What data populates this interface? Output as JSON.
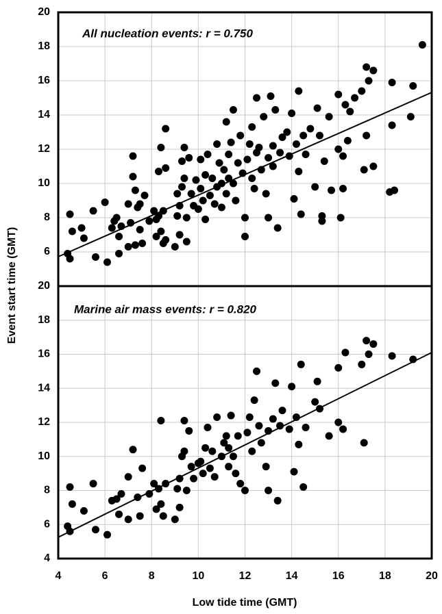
{
  "chart_data": [
    {
      "type": "scatter",
      "annotation": "All nucleation events: r = 0.750",
      "ylabel": "Event start time (GMT)",
      "color": "#000000",
      "grid": true,
      "xlim": [
        4,
        20
      ],
      "xticks": [
        4,
        6,
        8,
        10,
        12,
        14,
        16,
        18,
        20
      ],
      "ylim": [
        4,
        20
      ],
      "yticks": [
        6,
        8,
        10,
        12,
        14,
        16,
        18,
        20
      ],
      "x": [
        4.4,
        4.5,
        4.5,
        4.6,
        5.0,
        5.1,
        5.5,
        5.6,
        6.0,
        6.1,
        6.3,
        6.4,
        6.5,
        6.6,
        6.6,
        6.7,
        7.0,
        7.0,
        7.1,
        7.2,
        7.2,
        7.3,
        7.3,
        7.4,
        7.5,
        7.5,
        7.6,
        7.7,
        7.9,
        8.1,
        8.2,
        8.2,
        8.3,
        8.3,
        8.4,
        8.4,
        8.5,
        8.5,
        8.6,
        8.6,
        8.6,
        9.0,
        9.1,
        9.1,
        9.2,
        9.2,
        9.3,
        9.3,
        9.4,
        9.4,
        9.5,
        9.5,
        9.6,
        9.7,
        9.8,
        9.9,
        10.0,
        10.1,
        10.1,
        10.2,
        10.3,
        10.3,
        10.4,
        10.5,
        10.6,
        10.7,
        10.8,
        10.8,
        10.9,
        11.0,
        11.0,
        11.1,
        11.2,
        11.2,
        11.3,
        11.3,
        11.4,
        11.5,
        11.5,
        11.6,
        11.7,
        11.8,
        11.9,
        12.0,
        12.0,
        12.1,
        12.2,
        12.3,
        12.3,
        12.4,
        12.5,
        12.5,
        12.6,
        12.7,
        12.8,
        12.9,
        13.0,
        13.0,
        13.1,
        13.2,
        13.2,
        13.3,
        13.4,
        13.5,
        13.6,
        13.8,
        13.9,
        14.0,
        14.1,
        14.2,
        14.3,
        14.3,
        14.4,
        14.5,
        14.6,
        14.8,
        15.0,
        15.1,
        15.2,
        15.3,
        15.3,
        15.4,
        15.6,
        15.7,
        16.0,
        16.0,
        16.1,
        16.2,
        16.2,
        16.3,
        16.4,
        16.5,
        16.7,
        17.0,
        17.1,
        17.2,
        17.2,
        17.3,
        17.5,
        17.5,
        18.2,
        18.3,
        18.3,
        18.4,
        19.1,
        19.2,
        19.6
      ],
      "values": [
        5.9,
        5.6,
        8.2,
        7.2,
        7.4,
        6.8,
        8.4,
        5.7,
        8.9,
        5.4,
        7.4,
        7.8,
        8.0,
        5.9,
        6.9,
        7.5,
        8.8,
        6.3,
        7.7,
        11.6,
        10.4,
        9.6,
        6.4,
        8.6,
        7.3,
        8.8,
        6.5,
        9.3,
        7.8,
        8.4,
        7.9,
        6.9,
        8.1,
        10.7,
        12.1,
        7.2,
        6.5,
        8.4,
        13.2,
        10.9,
        6.7,
        6.3,
        8.1,
        9.4,
        8.7,
        7.0,
        11.3,
        9.8,
        12.1,
        10.3,
        8.0,
        6.6,
        11.5,
        9.4,
        8.7,
        10.2,
        8.5,
        9.7,
        11.4,
        9.0,
        10.5,
        7.9,
        11.7,
        9.3,
        10.3,
        8.8,
        12.3,
        9.8,
        11.2,
        10.0,
        8.6,
        10.8,
        13.6,
        9.4,
        11.7,
        10.3,
        12.4,
        14.3,
        10.0,
        9.0,
        11.2,
        12.8,
        10.6,
        8.0,
        6.9,
        11.4,
        12.3,
        10.3,
        13.3,
        9.7,
        15.0,
        11.8,
        12.1,
        10.8,
        13.9,
        9.4,
        11.5,
        8.0,
        15.1,
        12.2,
        11.0,
        14.3,
        7.4,
        11.8,
        12.7,
        13.0,
        11.6,
        14.1,
        9.1,
        12.3,
        10.7,
        15.4,
        8.2,
        12.8,
        11.7,
        13.2,
        9.8,
        14.4,
        12.8,
        8.1,
        7.8,
        11.3,
        13.9,
        9.6,
        15.2,
        12.0,
        8.0,
        9.7,
        11.6,
        14.6,
        12.5,
        14.2,
        15.0,
        15.4,
        10.8,
        16.8,
        12.8,
        16.0,
        11.0,
        16.6,
        9.5,
        15.9,
        13.4,
        9.6,
        13.9,
        15.7,
        18.1
      ],
      "trendline": {
        "x": [
          4,
          20
        ],
        "values": [
          5.72,
          15.32
        ]
      }
    },
    {
      "type": "scatter",
      "annotation": "Marine air mass events: r = 0.820",
      "xlabel": "Low tide time (GMT)",
      "color": "#000000",
      "grid": true,
      "xlim": [
        4,
        20
      ],
      "xticks": [
        4,
        6,
        8,
        10,
        12,
        14,
        16,
        18,
        20
      ],
      "ylim": [
        4,
        20
      ],
      "yticks": [
        4,
        6,
        8,
        10,
        12,
        14,
        16,
        18,
        20
      ],
      "x": [
        4.4,
        4.5,
        4.5,
        4.6,
        5.1,
        5.5,
        5.6,
        6.1,
        6.3,
        6.5,
        6.6,
        6.7,
        7.0,
        7.0,
        7.2,
        7.4,
        7.5,
        7.6,
        7.9,
        8.1,
        8.2,
        8.3,
        8.4,
        8.4,
        8.5,
        8.6,
        9.0,
        9.1,
        9.2,
        9.2,
        9.3,
        9.4,
        9.4,
        9.5,
        9.6,
        9.7,
        9.8,
        10.0,
        10.1,
        10.2,
        10.3,
        10.4,
        10.5,
        10.6,
        10.7,
        10.8,
        11.0,
        11.1,
        11.2,
        11.3,
        11.3,
        11.4,
        11.5,
        11.6,
        11.7,
        11.8,
        12.0,
        12.1,
        12.2,
        12.3,
        12.4,
        12.5,
        12.6,
        12.7,
        12.9,
        13.0,
        13.0,
        13.2,
        13.3,
        13.4,
        13.5,
        13.6,
        13.9,
        14.0,
        14.1,
        14.2,
        14.3,
        14.4,
        14.5,
        14.6,
        15.0,
        15.1,
        15.2,
        15.6,
        16.0,
        16.0,
        16.2,
        16.3,
        17.0,
        17.1,
        17.2,
        17.3,
        17.5,
        18.3,
        19.2
      ],
      "values": [
        5.9,
        5.6,
        8.2,
        7.2,
        6.8,
        8.4,
        5.7,
        5.4,
        7.4,
        7.5,
        6.6,
        7.8,
        8.8,
        6.3,
        10.4,
        7.6,
        6.5,
        9.3,
        7.8,
        8.4,
        6.9,
        8.1,
        12.1,
        7.2,
        6.5,
        8.4,
        6.3,
        8.1,
        8.7,
        7.0,
        10.0,
        12.1,
        10.3,
        8.0,
        11.5,
        9.4,
        8.7,
        9.6,
        9.7,
        9.0,
        10.5,
        11.7,
        9.3,
        10.3,
        8.8,
        12.3,
        10.0,
        10.8,
        11.2,
        9.4,
        10.5,
        12.4,
        10.0,
        9.0,
        11.2,
        8.4,
        8.0,
        11.4,
        12.3,
        10.3,
        13.3,
        15.0,
        11.8,
        10.8,
        9.4,
        11.5,
        8.0,
        12.2,
        14.3,
        7.4,
        11.8,
        12.7,
        11.6,
        14.1,
        9.1,
        12.3,
        10.7,
        15.4,
        8.2,
        11.7,
        13.2,
        14.4,
        12.8,
        11.2,
        15.2,
        12.0,
        11.6,
        16.1,
        15.4,
        10.8,
        16.8,
        16.0,
        16.6,
        15.9,
        15.7
      ],
      "trendline": {
        "x": [
          4,
          20
        ],
        "values": [
          5.25,
          16.1
        ]
      }
    }
  ]
}
